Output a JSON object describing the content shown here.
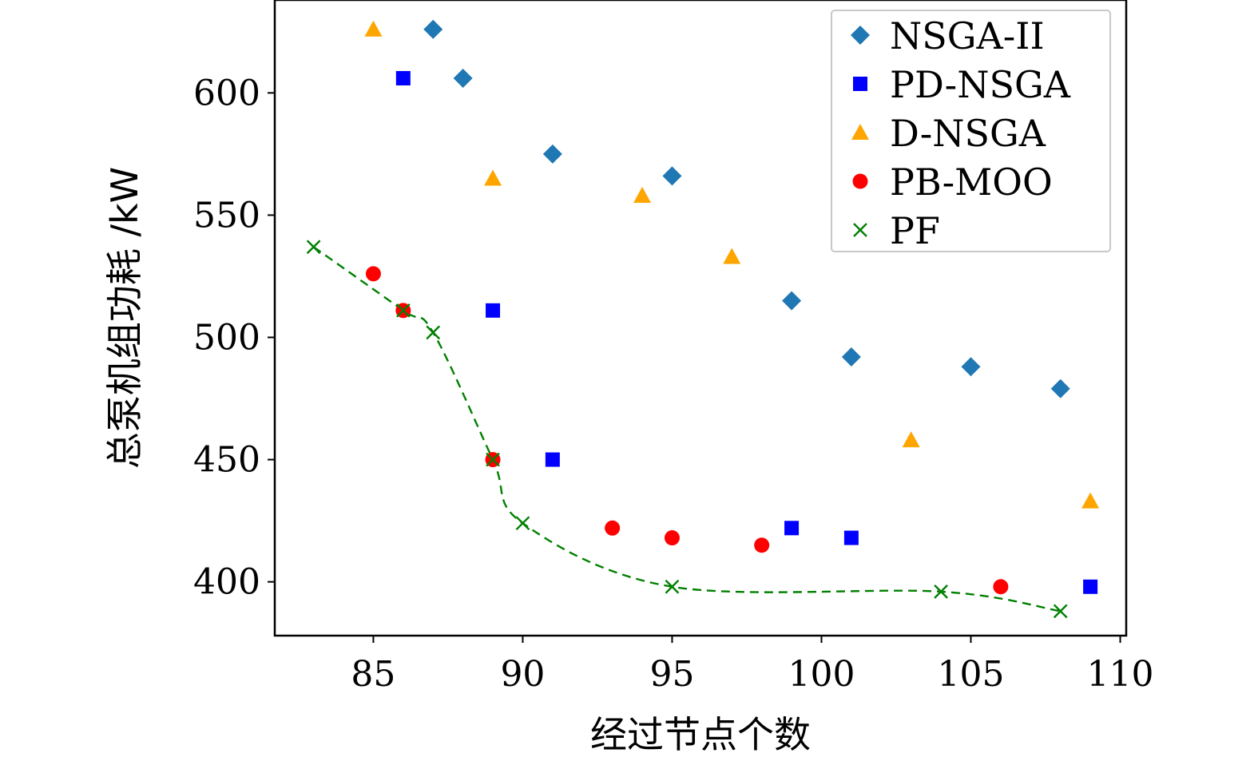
{
  "chart_data": {
    "type": "scatter",
    "xlabel": "经过节点个数",
    "ylabel": "总泵机组功耗 /kW",
    "xlim": [
      81.7,
      110.2
    ],
    "ylim": [
      378,
      638
    ],
    "xticks": [
      85,
      90,
      95,
      100,
      105,
      110
    ],
    "yticks": [
      400,
      450,
      500,
      550,
      600
    ],
    "grid": false,
    "legend_position": "top-right",
    "series": [
      {
        "name": "NSGA-II",
        "marker": "diamond",
        "color": "#1f77b4",
        "points": [
          [
            87,
            626
          ],
          [
            88,
            606
          ],
          [
            91,
            575
          ],
          [
            95,
            566
          ],
          [
            99,
            515
          ],
          [
            101,
            492
          ],
          [
            105,
            488
          ],
          [
            108,
            479
          ]
        ]
      },
      {
        "name": "PD-NSGA",
        "marker": "square",
        "color": "#0000ff",
        "points": [
          [
            86,
            606
          ],
          [
            89,
            511
          ],
          [
            91,
            450
          ],
          [
            99,
            422
          ],
          [
            101,
            418
          ],
          [
            109,
            398
          ]
        ]
      },
      {
        "name": "D-NSGA",
        "marker": "triangle",
        "color": "#ffa500",
        "points": [
          [
            85,
            626
          ],
          [
            89,
            565
          ],
          [
            94,
            558
          ],
          [
            97,
            533
          ],
          [
            103,
            458
          ],
          [
            109,
            433
          ]
        ]
      },
      {
        "name": "PB-MOO",
        "marker": "circle",
        "color": "#ff0000",
        "points": [
          [
            85,
            526
          ],
          [
            86,
            511
          ],
          [
            89,
            450
          ],
          [
            93,
            422
          ],
          [
            95,
            418
          ],
          [
            98,
            415
          ],
          [
            106,
            398
          ]
        ]
      },
      {
        "name": "PF",
        "marker": "x",
        "color": "#008000",
        "line": "dashed",
        "points": [
          [
            83,
            537
          ],
          [
            86,
            511
          ],
          [
            87,
            502
          ],
          [
            89,
            450
          ],
          [
            90,
            424
          ],
          [
            95,
            398
          ],
          [
            104,
            396
          ],
          [
            108,
            388
          ]
        ]
      }
    ]
  }
}
